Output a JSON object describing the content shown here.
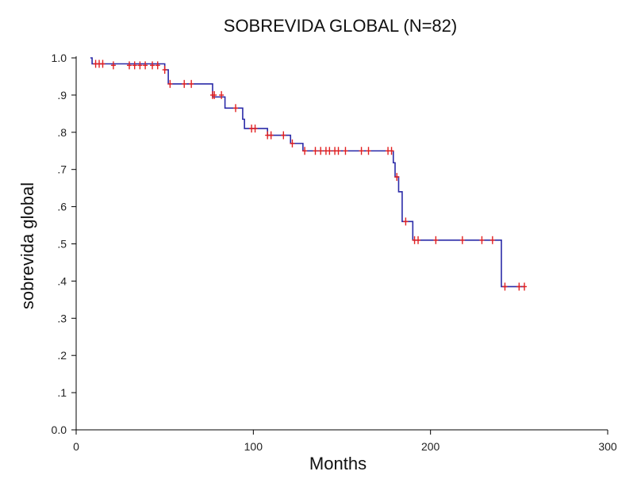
{
  "chart_data": {
    "type": "line",
    "subtype": "kaplan-meier",
    "title": "SOBREVIDA GLOBAL (N=82)",
    "xlabel": "Months",
    "ylabel": "sobrevida global",
    "xlim": [
      0,
      300
    ],
    "ylim": [
      0,
      1
    ],
    "x_ticks": [
      "0",
      "100",
      "200",
      "300"
    ],
    "y_ticks": [
      "0.0",
      ".1",
      ".2",
      ".3",
      ".4",
      ".5",
      ".6",
      ".7",
      ".8",
      ".9",
      "1.0"
    ],
    "grid": false,
    "colors": {
      "curve": "#2b2ba8",
      "censor": "#e22020"
    },
    "series": [
      {
        "steps": [
          {
            "x": 8,
            "y": 1.0
          },
          {
            "x": 9,
            "y": 0.984
          },
          {
            "x": 50,
            "y": 0.968
          },
          {
            "x": 52,
            "y": 0.93
          },
          {
            "x": 77,
            "y": 0.895
          },
          {
            "x": 84,
            "y": 0.865
          },
          {
            "x": 94,
            "y": 0.835
          },
          {
            "x": 95,
            "y": 0.81
          },
          {
            "x": 108,
            "y": 0.792
          },
          {
            "x": 121,
            "y": 0.77
          },
          {
            "x": 128,
            "y": 0.75
          },
          {
            "x": 179,
            "y": 0.718
          },
          {
            "x": 180,
            "y": 0.68
          },
          {
            "x": 182,
            "y": 0.64
          },
          {
            "x": 184,
            "y": 0.56
          },
          {
            "x": 190,
            "y": 0.51
          },
          {
            "x": 240,
            "y": 0.385
          },
          {
            "x": 253,
            "y": 0.385
          }
        ],
        "censored": [
          {
            "x": 11,
            "y": 0.984
          },
          {
            "x": 13,
            "y": 0.984
          },
          {
            "x": 15,
            "y": 0.984
          },
          {
            "x": 21,
            "y": 0.98
          },
          {
            "x": 30,
            "y": 0.98
          },
          {
            "x": 33,
            "y": 0.98
          },
          {
            "x": 36,
            "y": 0.98
          },
          {
            "x": 39,
            "y": 0.98
          },
          {
            "x": 43,
            "y": 0.98
          },
          {
            "x": 46,
            "y": 0.98
          },
          {
            "x": 50,
            "y": 0.968
          },
          {
            "x": 53,
            "y": 0.93
          },
          {
            "x": 61,
            "y": 0.93
          },
          {
            "x": 65,
            "y": 0.93
          },
          {
            "x": 77,
            "y": 0.9
          },
          {
            "x": 78,
            "y": 0.9
          },
          {
            "x": 82,
            "y": 0.9
          },
          {
            "x": 90,
            "y": 0.865
          },
          {
            "x": 99,
            "y": 0.81
          },
          {
            "x": 101,
            "y": 0.81
          },
          {
            "x": 108,
            "y": 0.792
          },
          {
            "x": 110,
            "y": 0.792
          },
          {
            "x": 117,
            "y": 0.792
          },
          {
            "x": 122,
            "y": 0.77
          },
          {
            "x": 129,
            "y": 0.75
          },
          {
            "x": 135,
            "y": 0.75
          },
          {
            "x": 138,
            "y": 0.75
          },
          {
            "x": 141,
            "y": 0.75
          },
          {
            "x": 143,
            "y": 0.75
          },
          {
            "x": 146,
            "y": 0.75
          },
          {
            "x": 148,
            "y": 0.75
          },
          {
            "x": 152,
            "y": 0.75
          },
          {
            "x": 161,
            "y": 0.75
          },
          {
            "x": 165,
            "y": 0.75
          },
          {
            "x": 176,
            "y": 0.75
          },
          {
            "x": 178,
            "y": 0.75
          },
          {
            "x": 181,
            "y": 0.68
          },
          {
            "x": 186,
            "y": 0.56
          },
          {
            "x": 191,
            "y": 0.51
          },
          {
            "x": 193,
            "y": 0.51
          },
          {
            "x": 203,
            "y": 0.51
          },
          {
            "x": 218,
            "y": 0.51
          },
          {
            "x": 229,
            "y": 0.51
          },
          {
            "x": 235,
            "y": 0.51
          },
          {
            "x": 242,
            "y": 0.385
          },
          {
            "x": 250,
            "y": 0.385
          },
          {
            "x": 253,
            "y": 0.385
          }
        ]
      }
    ]
  }
}
